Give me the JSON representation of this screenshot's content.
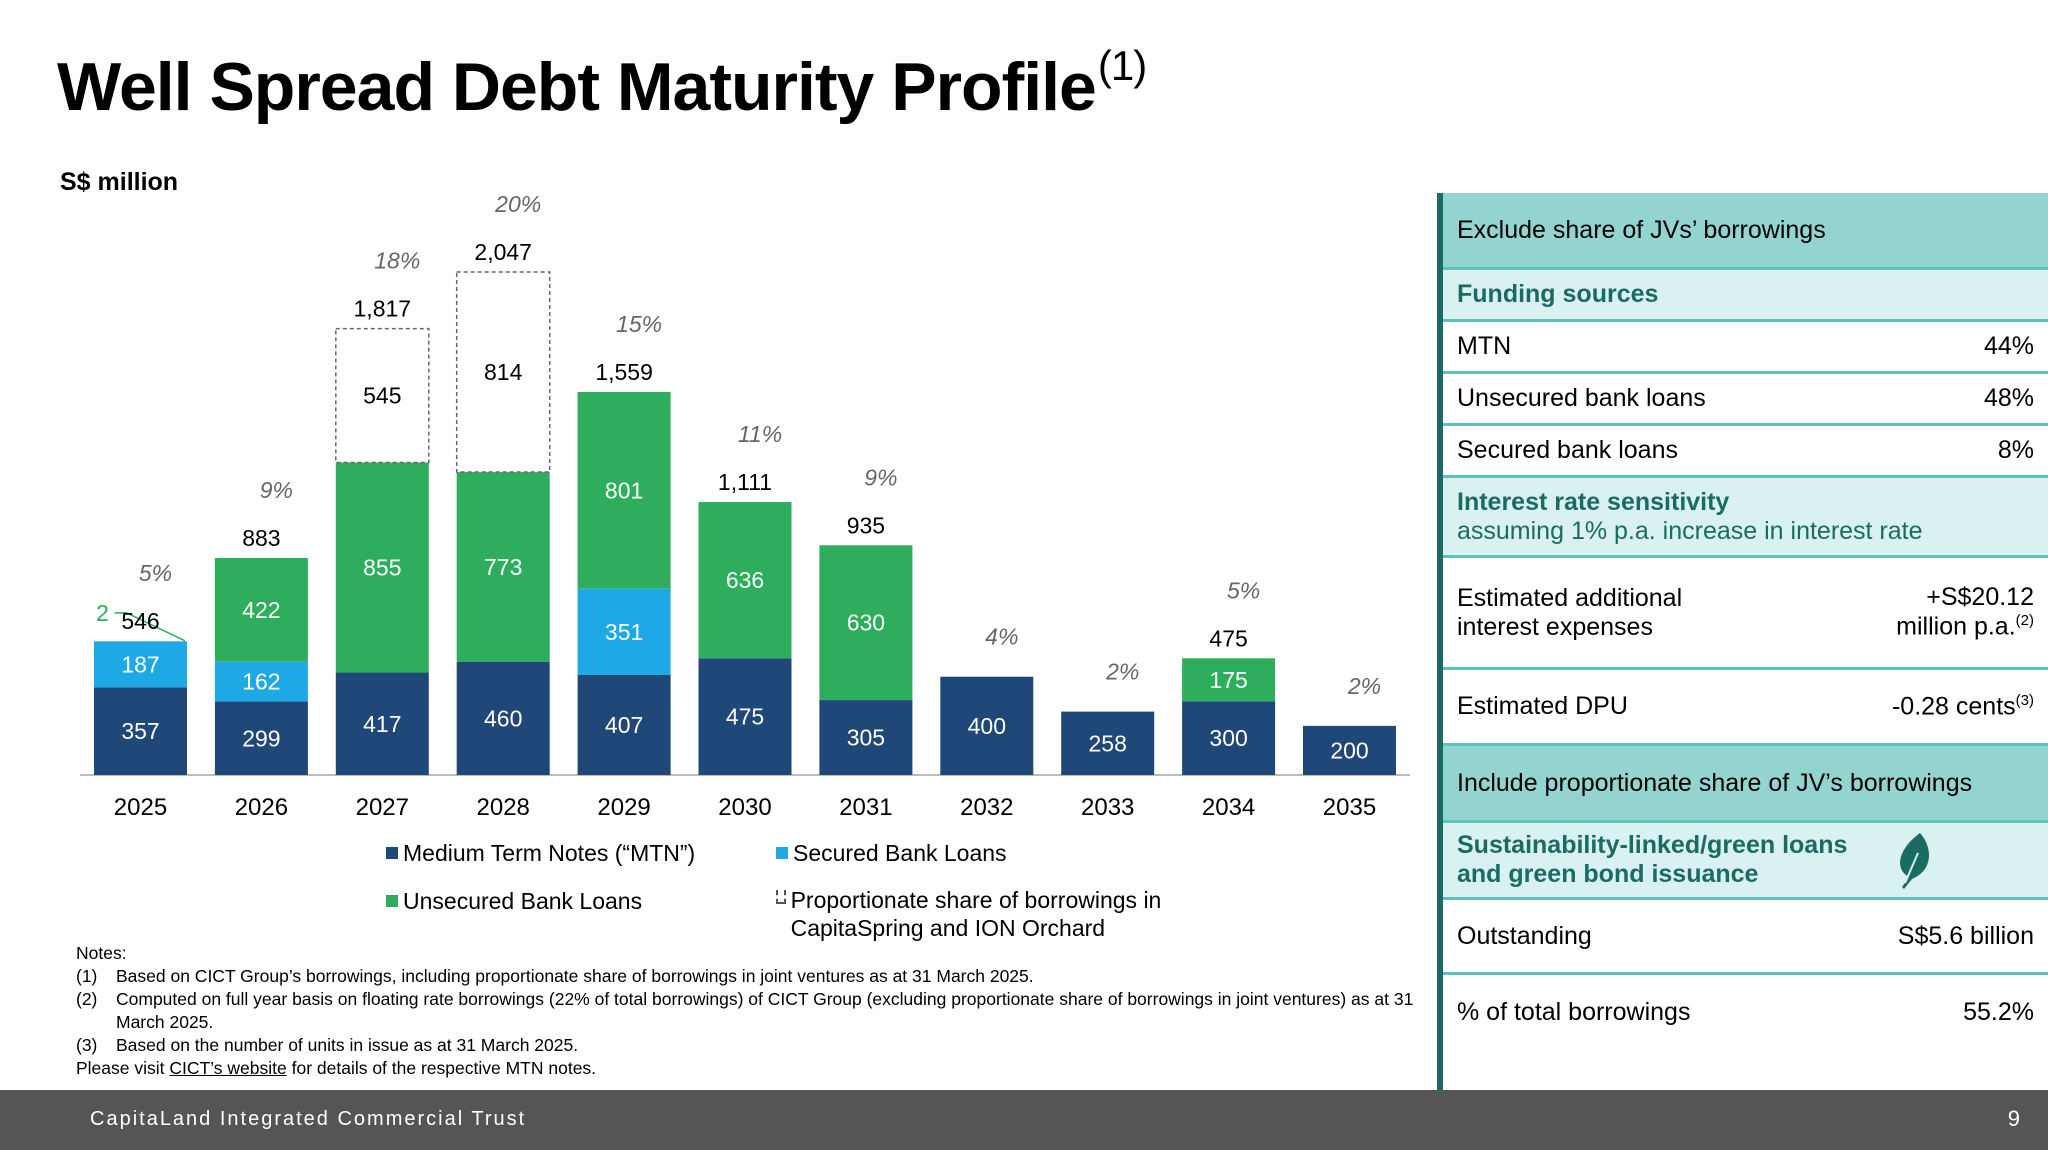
{
  "slide": {
    "title": "Well Spread Debt Maturity Profile",
    "title_footnote": "(1)",
    "unit_label": "S$ million",
    "footer_brand": "CapitaLand Integrated Commercial Trust",
    "page_number": "9"
  },
  "colors": {
    "mtn": "#1f4778",
    "secured": "#1fa8e6",
    "unsecured": "#2eae5c",
    "jv_border": "#666666",
    "panel_accent": "#1a6b62",
    "panel_header_bg": "#93d4d0",
    "panel_sub_bg": "#d9f1f0",
    "footer_bg": "#555555"
  },
  "chart_data": {
    "type": "bar",
    "stacked": true,
    "title": "Well Spread Debt Maturity Profile",
    "ylabel": "S$ million",
    "xlabel": "",
    "ylim": [
      0,
      2200
    ],
    "grid": false,
    "categories": [
      "2025",
      "2026",
      "2027",
      "2028",
      "2029",
      "2030",
      "2031",
      "2032",
      "2033",
      "2034",
      "2035"
    ],
    "series": [
      {
        "name": "Medium Term Notes (“MTN”)",
        "key": "mtn",
        "values": [
          357,
          299,
          417,
          460,
          407,
          475,
          305,
          400,
          258,
          300,
          200
        ],
        "labels": [
          "357",
          "299",
          "417",
          "460",
          "407",
          "475",
          "305",
          "400",
          "258",
          "300",
          "200"
        ]
      },
      {
        "name": "Secured Bank Loans",
        "key": "secured",
        "values": [
          187,
          162,
          0,
          0,
          351,
          0,
          0,
          0,
          0,
          0,
          0
        ],
        "labels": [
          "187",
          "162",
          "",
          "",
          "351",
          "",
          "",
          "",
          "",
          "",
          ""
        ]
      },
      {
        "name": "Unsecured Bank Loans",
        "key": "unsecured",
        "values": [
          2,
          422,
          855,
          773,
          801,
          636,
          630,
          0,
          0,
          175,
          0
        ],
        "labels": [
          "2",
          "422",
          "855",
          "773",
          "801",
          "636",
          "630",
          "",
          "",
          "175",
          ""
        ]
      },
      {
        "name": "Proportionate share of borrowings in CapitaSpring and ION Orchard",
        "key": "jv",
        "values": [
          0,
          0,
          545,
          814,
          0,
          0,
          0,
          0,
          0,
          0,
          0
        ],
        "labels": [
          "",
          "",
          "545",
          "814",
          "",
          "",
          "",
          "",
          "",
          "",
          ""
        ]
      }
    ],
    "totals": [
      "546",
      "883",
      "1,817",
      "2,047",
      "1,559",
      "1,111",
      "935",
      "",
      "",
      "475",
      ""
    ],
    "percent_of_total": [
      "5%",
      "9%",
      "18%",
      "20%",
      "15%",
      "11%",
      "9%",
      "4%",
      "2%",
      "5%",
      "2%"
    ],
    "legend": [
      {
        "key": "mtn",
        "label": "Medium Term Notes (“MTN”)"
      },
      {
        "key": "secured",
        "label": "Secured Bank Loans"
      },
      {
        "key": "unsecured",
        "label": "Unsecured Bank Loans"
      },
      {
        "key": "jv",
        "label": "Proportionate share of borrowings in CapitaSpring and ION Orchard"
      }
    ],
    "legend_position": "bottom"
  },
  "notes": {
    "heading": "Notes:",
    "items": [
      {
        "num": "(1)",
        "text": "Based on CICT Group’s borrowings, including proportionate share of borrowings in joint ventures as at 31 March 2025."
      },
      {
        "num": "(2)",
        "text": "Computed on full year basis on floating rate borrowings (22% of total borrowings) of CICT Group (excluding proportionate share of borrowings in joint ventures) as at 31 March 2025."
      },
      {
        "num": "(3)",
        "text": "Based on the number of units in issue as at 31 March 2025."
      }
    ],
    "visit_prefix": "Please visit ",
    "visit_link": "CICT’s website",
    "visit_suffix": " for details of the respective MTN notes."
  },
  "panel": {
    "exclude_header": "Exclude share of JVs’ borrowings",
    "funding_title": "Funding sources",
    "funding": [
      {
        "label": "MTN",
        "value": "44%"
      },
      {
        "label": "Unsecured bank loans",
        "value": "48%"
      },
      {
        "label": "Secured bank loans",
        "value": "8%"
      }
    ],
    "sensitivity_title": "Interest rate sensitivity",
    "sensitivity_subtitle": "assuming 1% p.a. increase in interest rate",
    "interest_label_1": "Estimated additional",
    "interest_label_2": "interest expenses",
    "interest_value_1": "+S$20.12",
    "interest_value_2": "million p.a.",
    "interest_footnote": "(2)",
    "dpu_label": "Estimated DPU",
    "dpu_value": "-0.28 cents",
    "dpu_footnote": "(3)",
    "include_header": "Include proportionate share of JV’s borrowings",
    "green_title_1": "Sustainability-linked/green loans",
    "green_title_2": "and green bond issuance",
    "outstanding_label": "Outstanding",
    "outstanding_value": "S$5.6 billion",
    "pct_label": "% of total borrowings",
    "pct_value": "55.2%"
  }
}
